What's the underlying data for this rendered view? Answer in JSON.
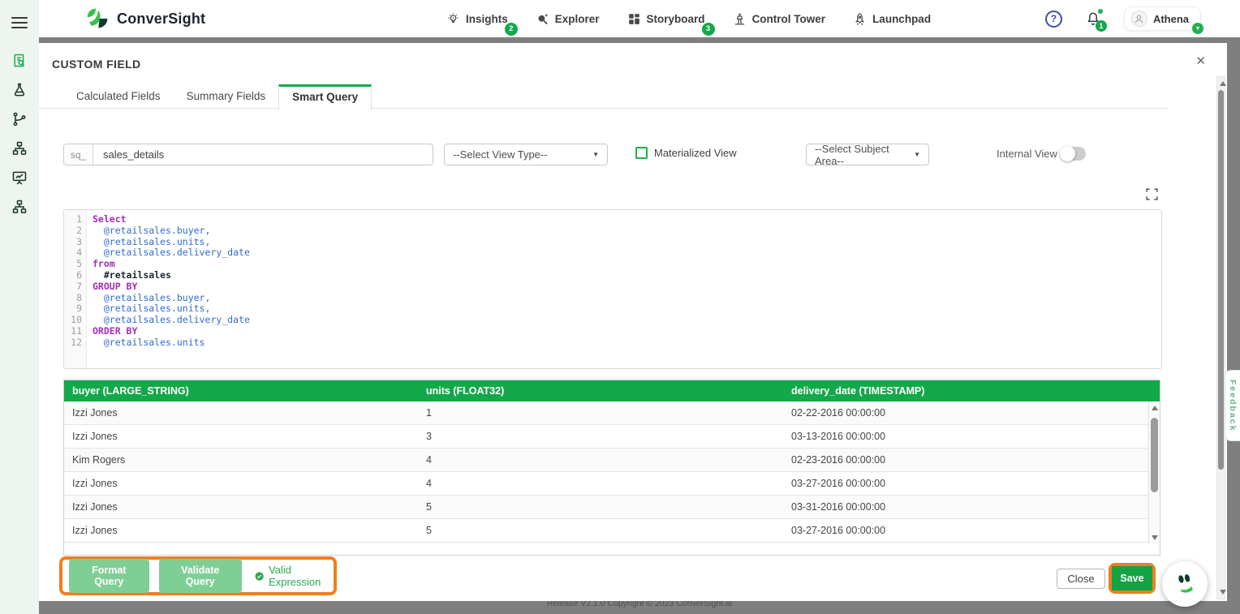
{
  "colors": {
    "accent_green": "#13A84A",
    "annotation_orange": "#EE7F1F",
    "button_light_green": "#7FCE95",
    "save_green": "#13A244",
    "keyword_purple": "#A32CB5",
    "field_blue": "#2F6BD0"
  },
  "topbar": {
    "brand": "ConverSight",
    "nav_items": [
      {
        "label": "Insights",
        "icon": "insights-icon",
        "badge": "2"
      },
      {
        "label": "Explorer",
        "icon": "explorer-icon",
        "badge": null
      },
      {
        "label": "Storyboard",
        "icon": "storyboard-icon",
        "badge": "3"
      },
      {
        "label": "Control Tower",
        "icon": "control-tower-icon",
        "badge": null
      },
      {
        "label": "Launchpad",
        "icon": "launchpad-icon",
        "badge": null
      }
    ],
    "help_glyph": "?",
    "notification_count": "1",
    "user_name": "Athena",
    "user_caret_glyph": "▼"
  },
  "sidebar": {
    "icons": [
      {
        "name": "report-search-icon",
        "active": true
      },
      {
        "name": "flask-icon",
        "active": false
      },
      {
        "name": "branch-icon",
        "active": false
      },
      {
        "name": "sitemap-icon",
        "active": false
      },
      {
        "name": "presentation-chart-icon",
        "active": false
      },
      {
        "name": "org-chart-icon",
        "active": false
      }
    ]
  },
  "modal": {
    "title": "CUSTOM FIELD",
    "close_glyph": "✕",
    "tabs": [
      {
        "label": "Calculated Fields",
        "active": false
      },
      {
        "label": "Summary Fields",
        "active": false
      },
      {
        "label": "Smart Query",
        "active": true
      }
    ],
    "form": {
      "query_name_prefix": "sq_",
      "query_name_value": "sales_details",
      "view_type_value": "--Select View Type--",
      "materialized_view_label": "Materialized View",
      "subject_area_value": "--Select Subject Area--",
      "internal_view_label": "Internal View",
      "select_caret_glyph": "▼"
    },
    "editor": {
      "lines": [
        {
          "num": "1",
          "tokens": [
            {
              "text": "Select",
              "type": "kw"
            }
          ]
        },
        {
          "num": "2",
          "tokens": [
            {
              "text": "  ",
              "type": "plain"
            },
            {
              "text": "@retailsales.buyer,",
              "type": "field"
            }
          ]
        },
        {
          "num": "3",
          "tokens": [
            {
              "text": "  ",
              "type": "plain"
            },
            {
              "text": "@retailsales.units,",
              "type": "field"
            }
          ]
        },
        {
          "num": "4",
          "tokens": [
            {
              "text": "  ",
              "type": "plain"
            },
            {
              "text": "@retailsales.delivery_date",
              "type": "field"
            }
          ]
        },
        {
          "num": "5",
          "tokens": [
            {
              "text": "from",
              "type": "kw"
            }
          ]
        },
        {
          "num": "6",
          "tokens": [
            {
              "text": "  ",
              "type": "plain"
            },
            {
              "text": "#retailsales",
              "type": "table"
            }
          ]
        },
        {
          "num": "7",
          "tokens": [
            {
              "text": "GROUP BY",
              "type": "kw"
            }
          ]
        },
        {
          "num": "8",
          "tokens": [
            {
              "text": "  ",
              "type": "plain"
            },
            {
              "text": "@retailsales.buyer,",
              "type": "field"
            }
          ]
        },
        {
          "num": "9",
          "tokens": [
            {
              "text": "  ",
              "type": "plain"
            },
            {
              "text": "@retailsales.units,",
              "type": "field"
            }
          ]
        },
        {
          "num": "10",
          "tokens": [
            {
              "text": "  ",
              "type": "plain"
            },
            {
              "text": "@retailsales.delivery_date",
              "type": "field"
            }
          ]
        },
        {
          "num": "11",
          "tokens": [
            {
              "text": "ORDER BY",
              "type": "kw"
            }
          ]
        },
        {
          "num": "12",
          "tokens": [
            {
              "text": "  ",
              "type": "plain"
            },
            {
              "text": "@retailsales.units",
              "type": "field"
            }
          ]
        }
      ]
    },
    "results_table": {
      "columns": [
        "buyer (LARGE_STRING)",
        "units (FLOAT32)",
        "delivery_date (TIMESTAMP)"
      ],
      "rows": [
        [
          "Izzi Jones",
          "1",
          "02-22-2016 00:00:00"
        ],
        [
          "Izzi Jones",
          "3",
          "03-13-2016 00:00:00"
        ],
        [
          "Kim Rogers",
          "4",
          "02-23-2016 00:00:00"
        ],
        [
          "Izzi Jones",
          "4",
          "03-27-2016 00:00:00"
        ],
        [
          "Izzi Jones",
          "5",
          "03-31-2016 00:00:00"
        ],
        [
          "Izzi Jones",
          "5",
          "03-27-2016 00:00:00"
        ]
      ]
    },
    "actions": {
      "format_label": "Format Query",
      "validate_label": "Validate Query",
      "valid_expression_label": "Valid Expression",
      "close_label": "Close",
      "save_label": "Save"
    }
  },
  "feedback_label": "Feedback",
  "footer_text": "Release V2.1.0 Copyright © 2023 ConverSight.ai"
}
